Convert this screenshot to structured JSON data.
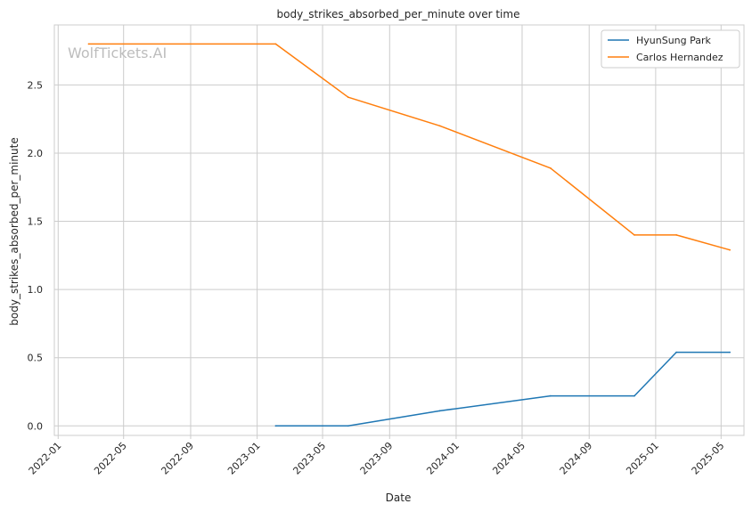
{
  "chart_data": {
    "type": "line",
    "title": "body_strikes_absorbed_per_minute over time",
    "xlabel": "Date",
    "ylabel": "body_strikes_absorbed_per_minute",
    "watermark": "WolfTickets.AI",
    "x_ticks": [
      "2022-01",
      "2022-05",
      "2022-09",
      "2023-01",
      "2023-05",
      "2023-09",
      "2024-01",
      "2024-05",
      "2024-09",
      "2025-01",
      "2025-05"
    ],
    "y_ticks": [
      "0.0",
      "0.5",
      "1.0",
      "1.5",
      "2.0",
      "2.5"
    ],
    "ylim": [
      -0.07,
      2.94
    ],
    "xlim": [
      "2021-12-25",
      "2025-06-12"
    ],
    "grid": true,
    "legend_position": "top-right",
    "series": [
      {
        "name": "HyunSung Park",
        "color": "#1f77b4",
        "points": [
          [
            "2023-02-04",
            0.0
          ],
          [
            "2023-06-17",
            0.0
          ],
          [
            "2023-12-02",
            0.11
          ],
          [
            "2024-06-22",
            0.22
          ],
          [
            "2024-11-23",
            0.22
          ],
          [
            "2025-02-08",
            0.54
          ],
          [
            "2025-05-17",
            0.54
          ]
        ]
      },
      {
        "name": "Carlos Hernandez",
        "color": "#ff7f0e",
        "points": [
          [
            "2022-02-26",
            2.8
          ],
          [
            "2023-02-04",
            2.8
          ],
          [
            "2023-06-17",
            2.41
          ],
          [
            "2023-12-02",
            2.2
          ],
          [
            "2024-06-22",
            1.89
          ],
          [
            "2024-11-23",
            1.4
          ],
          [
            "2025-02-08",
            1.4
          ],
          [
            "2025-05-17",
            1.29
          ]
        ]
      }
    ]
  }
}
